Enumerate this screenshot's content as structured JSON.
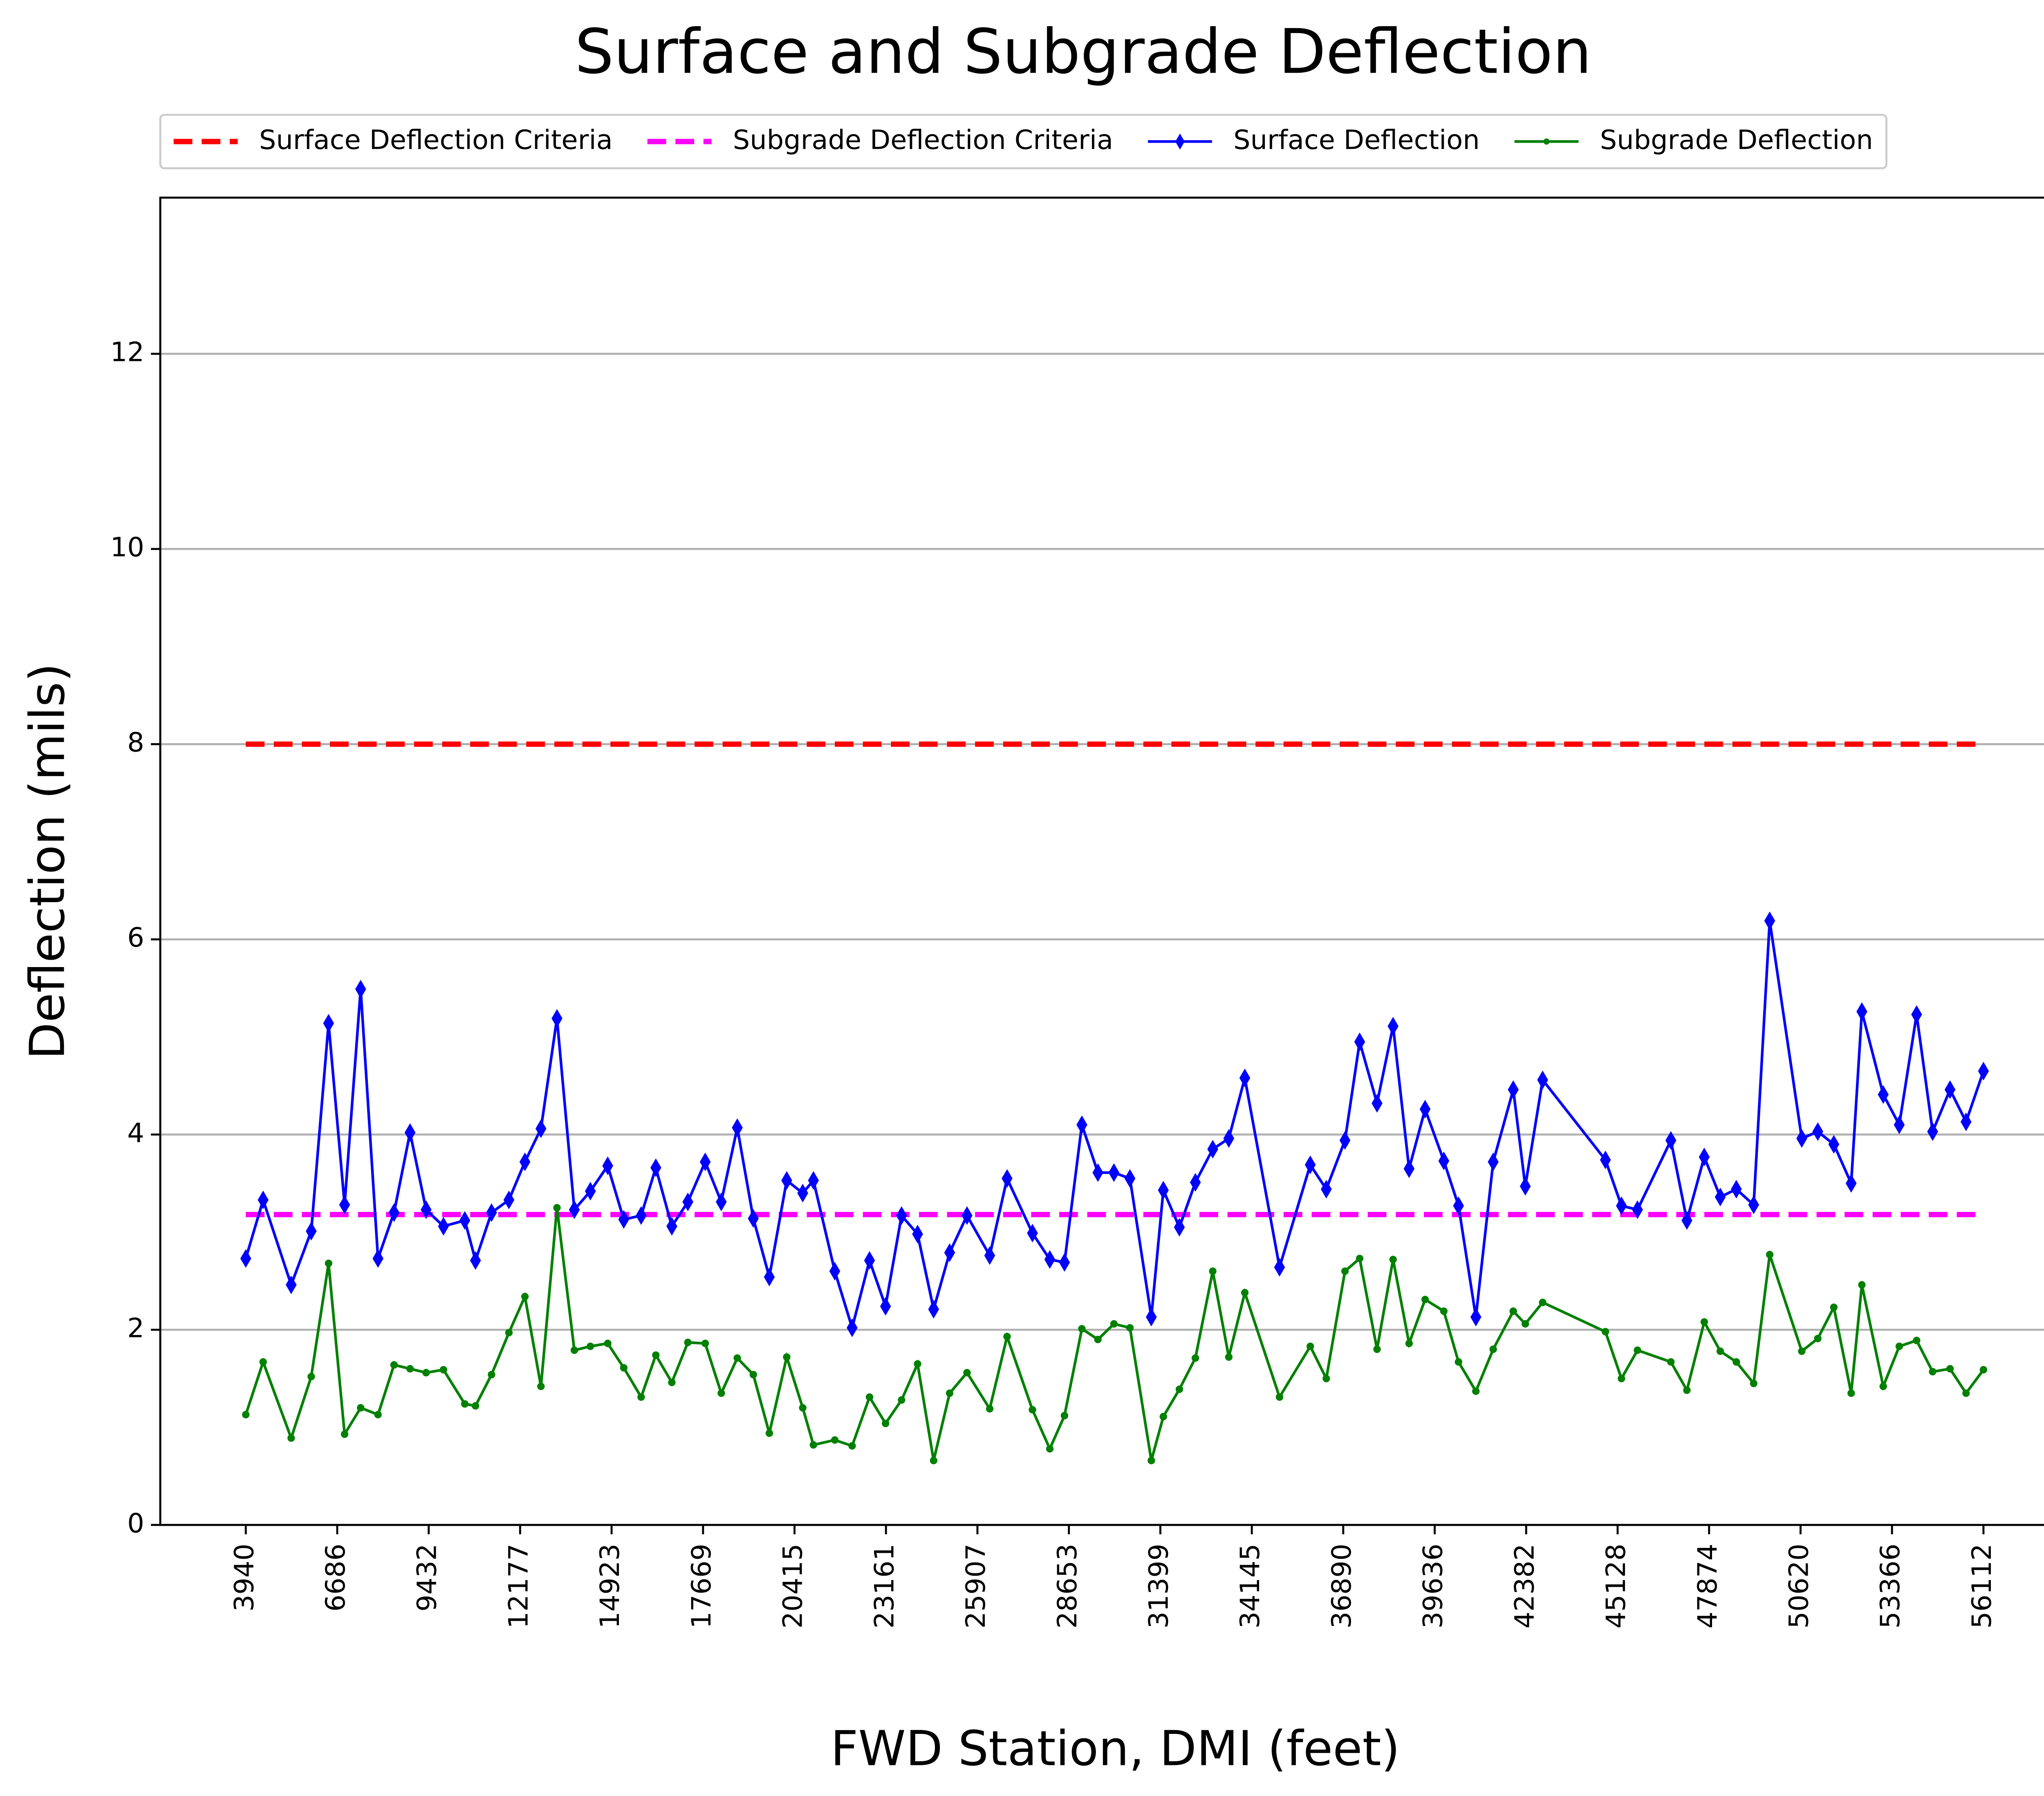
{
  "chart_data": {
    "type": "line",
    "title": "Surface and Subgrade Deflection",
    "x_label": "FWD Station, DMI (feet)",
    "y_label": "Deflection (mils)",
    "xlim": [
      1373,
      58679
    ],
    "ylim": [
      0,
      13.6
    ],
    "xticks": [
      3940,
      6686,
      9432,
      12177,
      14923,
      17669,
      20415,
      23161,
      25907,
      28653,
      31399,
      34145,
      36890,
      39636,
      42382,
      45128,
      47874,
      50620,
      53366,
      56112
    ],
    "yticks": [
      0,
      2,
      4,
      6,
      8,
      10,
      12
    ],
    "grid": "y",
    "legend": "top",
    "series": [
      {
        "name": "Surface Deflection Criteria",
        "color": "#ff0000",
        "line": "dashed",
        "marker": "none",
        "x": [
          3940,
          56112
        ],
        "values": [
          8,
          8
        ]
      },
      {
        "name": "Subgrade Deflection Criteria",
        "color": "#ff00ff",
        "line": "dashed",
        "marker": "none",
        "x": [
          3940,
          56112
        ],
        "values": [
          3.18,
          3.18
        ]
      },
      {
        "name": "Surface Deflection",
        "color": "#0000ff",
        "line": "solid",
        "marker": "diamond",
        "x": [
          3940,
          4461,
          5303,
          5905,
          6426,
          6907,
          7389,
          7910,
          8391,
          8872,
          9354,
          9875,
          10516,
          10837,
          11318,
          11840,
          12321,
          12802,
          13283,
          13805,
          14286,
          14807,
          15288,
          15810,
          16251,
          16732,
          17213,
          17734,
          18216,
          18697,
          19178,
          19659,
          20181,
          20662,
          20983,
          21624,
          22145,
          22667,
          23148,
          23629,
          24110,
          24592,
          25073,
          25594,
          26276,
          26797,
          27559,
          28080,
          28521,
          29043,
          29524,
          30005,
          30486,
          31128,
          31489,
          31970,
          32451,
          32972,
          33454,
          33935,
          34977,
          35900,
          36381,
          36942,
          37383,
          37905,
          38386,
          38867,
          39348,
          39910,
          40351,
          40872,
          41393,
          41995,
          42356,
          42877,
          44762,
          45243,
          45724,
          46727,
          47208,
          47729,
          48210,
          48692,
          49213,
          49694,
          50657,
          51138,
          51619,
          52140,
          52461,
          53103,
          53584,
          54105,
          54586,
          55108,
          55589,
          56112
        ],
        "values": [
          2.73,
          3.33,
          2.46,
          3.01,
          5.14,
          3.28,
          5.49,
          2.73,
          3.2,
          4.02,
          3.23,
          3.06,
          3.12,
          2.71,
          3.2,
          3.33,
          3.72,
          4.06,
          5.19,
          3.23,
          3.42,
          3.68,
          3.13,
          3.17,
          3.66,
          3.06,
          3.31,
          3.72,
          3.31,
          4.07,
          3.14,
          2.54,
          3.53,
          3.4,
          3.53,
          2.6,
          2.02,
          2.71,
          2.24,
          3.17,
          2.98,
          2.21,
          2.79,
          3.17,
          2.76,
          3.55,
          2.99,
          2.72,
          2.69,
          4.1,
          3.61,
          3.61,
          3.55,
          2.13,
          3.43,
          3.05,
          3.51,
          3.85,
          3.96,
          4.58,
          2.64,
          3.69,
          3.44,
          3.94,
          4.95,
          4.32,
          5.11,
          3.65,
          4.26,
          3.73,
          3.27,
          2.13,
          3.72,
          4.46,
          3.47,
          4.56,
          3.74,
          3.27,
          3.23,
          3.94,
          3.12,
          3.77,
          3.36,
          3.44,
          3.28,
          6.19,
          3.96,
          4.03,
          3.9,
          3.5,
          5.26,
          4.41,
          4.1,
          5.23,
          4.03,
          4.46,
          4.13,
          4.65
        ]
      },
      {
        "name": "Subgrade Deflection",
        "color": "#008000",
        "line": "solid",
        "marker": "dot",
        "x": [
          3940,
          4461,
          5303,
          5905,
          6426,
          6907,
          7389,
          7910,
          8391,
          8872,
          9354,
          9875,
          10516,
          10837,
          11318,
          11840,
          12321,
          12802,
          13283,
          13805,
          14286,
          14807,
          15288,
          15810,
          16251,
          16732,
          17213,
          17734,
          18216,
          18697,
          19178,
          19659,
          20181,
          20662,
          20983,
          21624,
          22145,
          22667,
          23148,
          23629,
          24110,
          24592,
          25073,
          25594,
          26276,
          26797,
          27559,
          28080,
          28521,
          29043,
          29524,
          30005,
          30486,
          31128,
          31489,
          31970,
          32451,
          32972,
          33454,
          33935,
          34977,
          35900,
          36381,
          36942,
          37383,
          37905,
          38386,
          38867,
          39348,
          39910,
          40351,
          40872,
          41393,
          41995,
          42356,
          42877,
          44762,
          45243,
          45724,
          46727,
          47208,
          47729,
          48210,
          48692,
          49213,
          49694,
          50657,
          51138,
          51619,
          52140,
          52461,
          53103,
          53584,
          54105,
          54586,
          55108,
          55589,
          56112
        ],
        "values": [
          1.13,
          1.67,
          0.89,
          1.52,
          2.68,
          0.93,
          1.2,
          1.13,
          1.64,
          1.6,
          1.56,
          1.59,
          1.24,
          1.22,
          1.54,
          1.97,
          2.34,
          1.42,
          3.25,
          1.79,
          1.83,
          1.86,
          1.61,
          1.31,
          1.74,
          1.46,
          1.87,
          1.86,
          1.35,
          1.71,
          1.54,
          0.94,
          1.72,
          1.2,
          0.82,
          0.87,
          0.81,
          1.31,
          1.04,
          1.28,
          1.65,
          0.66,
          1.35,
          1.56,
          1.19,
          1.93,
          1.18,
          0.78,
          1.12,
          2.01,
          1.9,
          2.06,
          2.02,
          0.66,
          1.11,
          1.39,
          1.71,
          2.6,
          1.72,
          2.38,
          1.31,
          1.83,
          1.5,
          2.6,
          2.73,
          1.8,
          2.72,
          1.86,
          2.31,
          2.19,
          1.67,
          1.37,
          1.8,
          2.19,
          2.06,
          2.28,
          1.98,
          1.5,
          1.79,
          1.67,
          1.38,
          2.08,
          1.78,
          1.67,
          1.45,
          2.77,
          1.78,
          1.91,
          2.23,
          1.35,
          2.46,
          1.42,
          1.83,
          1.89,
          1.57,
          1.6,
          1.35,
          1.59
        ]
      }
    ]
  }
}
